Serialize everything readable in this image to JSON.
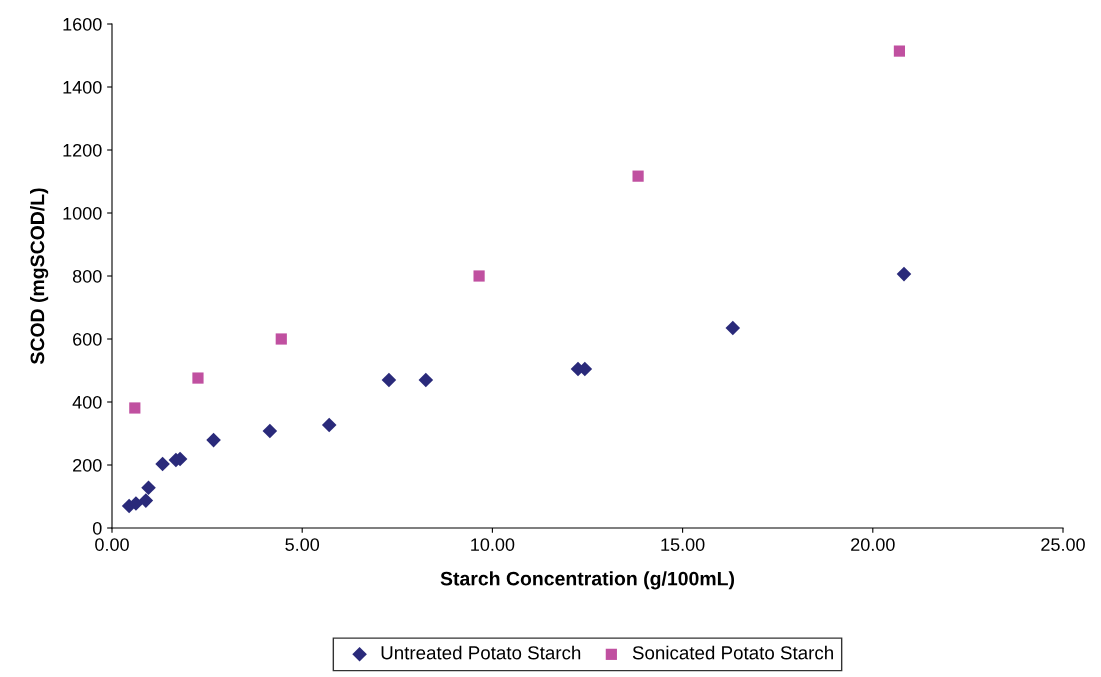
{
  "chart_data": {
    "type": "scatter",
    "xlabel": "Starch Concentration (g/100mL)",
    "ylabel": "SCOD (mgSCOD/L)",
    "xlim": [
      0,
      25
    ],
    "xticks": [
      {
        "value": 0,
        "label": "0.00"
      },
      {
        "value": 5,
        "label": "5.00"
      },
      {
        "value": 10,
        "label": "10.00"
      },
      {
        "value": 15,
        "label": "15.00"
      },
      {
        "value": 20,
        "label": "20.00"
      },
      {
        "value": 25,
        "label": "25.00"
      }
    ],
    "ylim": [
      0,
      1600
    ],
    "yticks": [
      0,
      200,
      400,
      600,
      800,
      1000,
      1200,
      1400,
      1600
    ],
    "grid": false,
    "legend": "bottom",
    "series": [
      {
        "name": "Untreated Potato Starch",
        "color": "#2a2a7a",
        "marker": "diamond",
        "x": [
          0.45,
          0.63,
          0.89,
          0.96,
          1.33,
          1.68,
          1.79,
          2.67,
          4.15,
          5.71,
          7.28,
          8.25,
          12.25,
          12.43,
          16.32,
          20.82
        ],
        "values": [
          70,
          78,
          87,
          128,
          203,
          216,
          219,
          279,
          308,
          327,
          470,
          470,
          505,
          505,
          635,
          806
        ]
      },
      {
        "name": "Sonicated Potato Starch",
        "color": "#c050a0",
        "marker": "square",
        "x": [
          0.6,
          2.26,
          4.45,
          9.65,
          13.83,
          20.7
        ],
        "values": [
          381,
          476,
          600,
          800,
          1117,
          1514
        ]
      }
    ]
  }
}
